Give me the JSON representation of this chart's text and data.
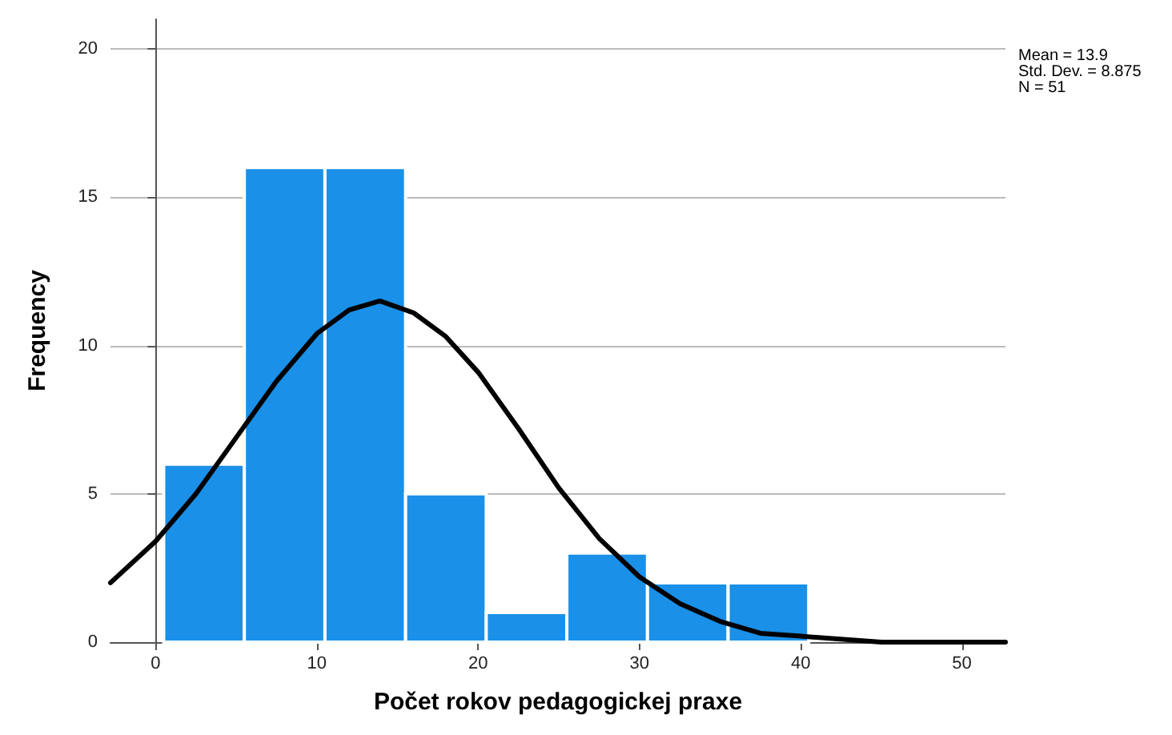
{
  "chart_data": {
    "type": "histogram",
    "xlabel": "Počet rokov pedagogickej praxe",
    "ylabel": "Frequency",
    "bins": [
      0.5,
      5.5,
      10.5,
      15.5,
      20.5,
      25.5,
      30.5,
      35.5,
      40.5
    ],
    "values": [
      6,
      16,
      16,
      5,
      1,
      3,
      2,
      2
    ],
    "color": "#1a90e8",
    "series": [
      {
        "type": "line",
        "color": "#000000",
        "marker": "none",
        "x": [
          -2.8,
          0,
          2.5,
          5,
          7.5,
          10,
          12,
          13.9,
          16,
          18,
          20,
          22.5,
          25,
          27.5,
          30,
          32.5,
          35,
          37.5,
          40,
          45,
          52.7
        ],
        "values": [
          2.0,
          3.4,
          5.0,
          6.9,
          8.8,
          10.4,
          11.2,
          11.5,
          11.1,
          10.3,
          9.1,
          7.2,
          5.2,
          3.5,
          2.2,
          1.3,
          0.7,
          0.3,
          0.2,
          0.0,
          0.0
        ]
      }
    ],
    "xlim": [
      -2.8,
      52.7
    ],
    "xticks": [
      0,
      10,
      20,
      30,
      40,
      50
    ],
    "ylim": [
      0,
      21
    ],
    "yticks": [
      0,
      5,
      10,
      15,
      20
    ],
    "grid": "y",
    "annotations": [
      "Mean = 13.9",
      "Std. Dev. = 8.875",
      "N = 51"
    ]
  }
}
